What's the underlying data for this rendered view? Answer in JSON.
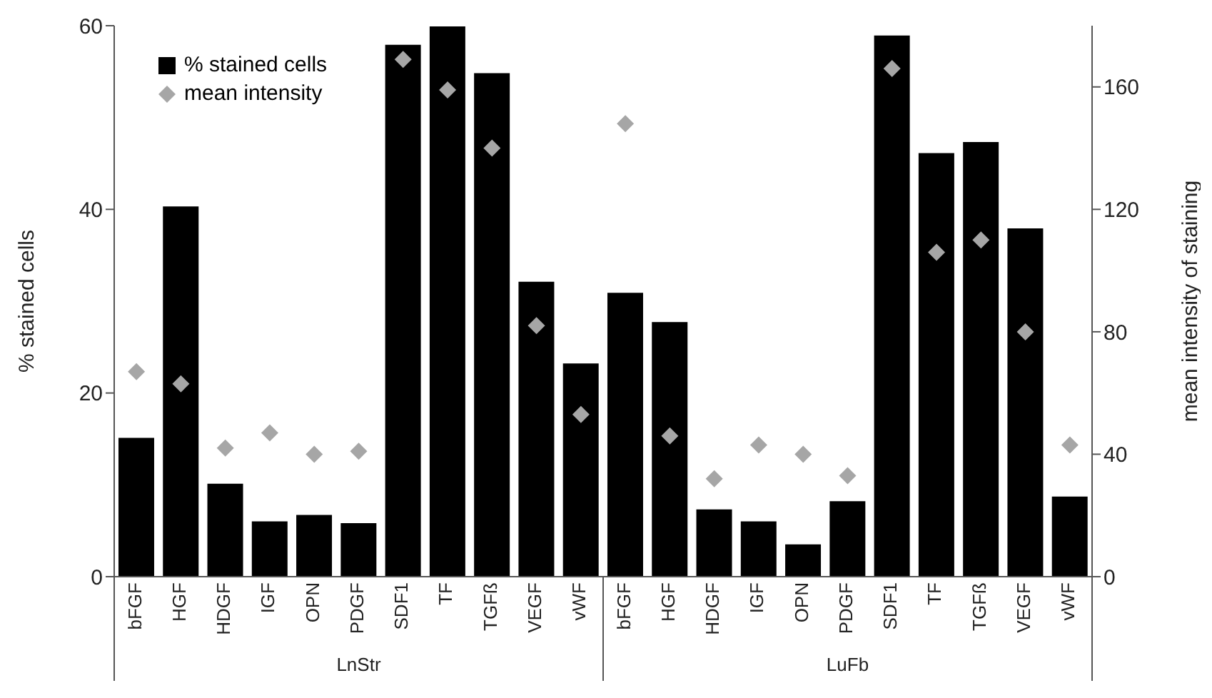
{
  "chart_data": {
    "type": "bar",
    "categories": [
      "bFGF",
      "HGF",
      "HDGF",
      "IGF",
      "OPN",
      "PDGF",
      "SDF1",
      "TF",
      "TGFß",
      "VEGF",
      "vWF",
      "bFGF",
      "HGF",
      "HDGF",
      "IGF",
      "OPN",
      "PDGF",
      "SDF1",
      "TF",
      "TGFß",
      "VEGF",
      "vWF"
    ],
    "series": [
      {
        "name": "% stained cells",
        "color": "#000000",
        "values": [
          15.2,
          40.4,
          10.2,
          6.1,
          6.8,
          5.9,
          58.0,
          60,
          54.9,
          32.2,
          23.3,
          31.0,
          27.8,
          7.4,
          6.1,
          3.6,
          8.3,
          59.0,
          46.2,
          47.4,
          38.0,
          8.8
        ]
      },
      {
        "name": "mean intensity",
        "type": "scatter",
        "axis": "y2",
        "color": "#a6a6a6",
        "marker": "diamond",
        "values": [
          67,
          63,
          42,
          47,
          40,
          41,
          169,
          159,
          140,
          82,
          53,
          148,
          46,
          32,
          43,
          40,
          33,
          166,
          106,
          110,
          80,
          43
        ]
      }
    ],
    "ylabel": "% stained cells",
    "y2label": "mean intensity of staining",
    "ylim": [
      0,
      60
    ],
    "yticks": [
      0,
      20,
      40,
      60
    ],
    "y2lim": [
      0,
      180
    ],
    "y2ticks": [
      0,
      40,
      80,
      120,
      160
    ],
    "annotations": [
      "LnStr",
      "LuFb"
    ],
    "legend": "top left",
    "grid": false
  }
}
